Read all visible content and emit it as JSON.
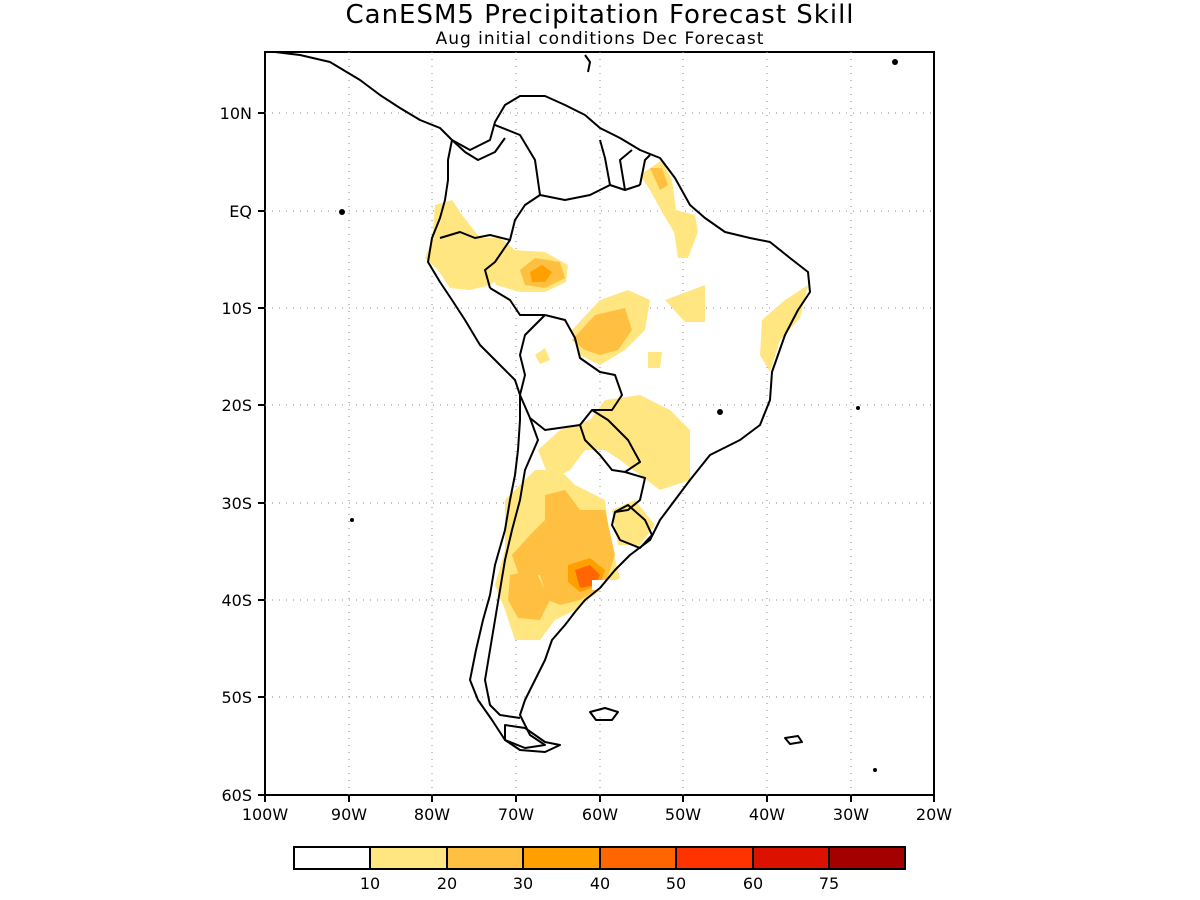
{
  "title": "CanESM5 Precipitation Forecast Skill",
  "subtitle": "Aug initial conditions   Dec Forecast",
  "map": {
    "region": "South America",
    "lon_range": [
      -100,
      -20
    ],
    "lat_range": [
      -60,
      15
    ],
    "grid": true,
    "lat_labels": [
      "10N",
      "EQ",
      "10S",
      "20S",
      "30S",
      "40S",
      "50S",
      "60S"
    ],
    "lon_labels": [
      "100W",
      "90W",
      "80W",
      "70W",
      "60W",
      "50W",
      "40W",
      "30W",
      "20W"
    ]
  },
  "legend": {
    "colors": [
      "#ffffff",
      "#ffe680",
      "#ffbf40",
      "#ff9f00",
      "#ff6500",
      "#ff3300",
      "#dd1100",
      "#a50000"
    ],
    "labels": [
      "10",
      "20",
      "30",
      "40",
      "50",
      "60",
      "75"
    ]
  }
}
